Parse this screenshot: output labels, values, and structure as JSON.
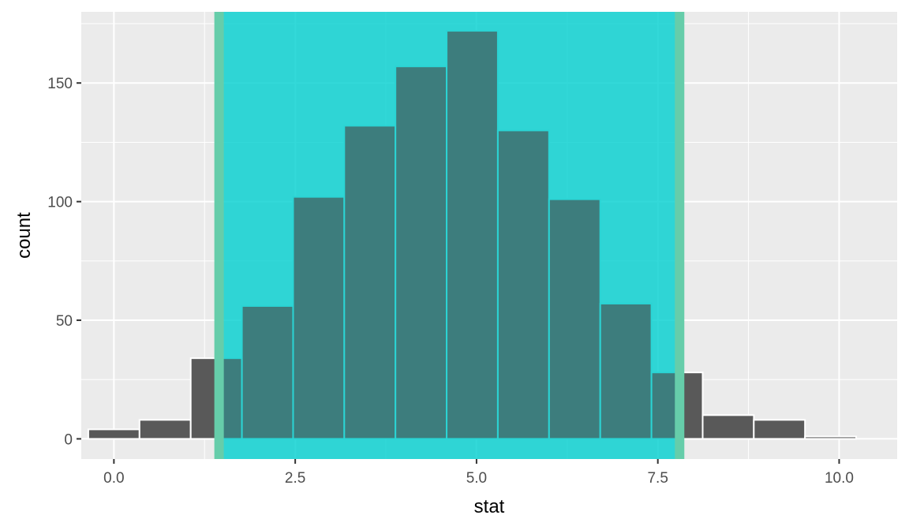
{
  "chart_data": {
    "type": "bar",
    "subtype": "histogram",
    "xlabel": "stat",
    "ylabel": "count",
    "xlim": [
      -0.45,
      10.8
    ],
    "ylim": [
      -8.5,
      180
    ],
    "x_ticks": [
      0.0,
      2.5,
      5.0,
      7.5,
      10.0
    ],
    "x_tick_labels": [
      "0.0",
      "2.5",
      "5.0",
      "7.5",
      "10.0"
    ],
    "y_ticks": [
      0,
      50,
      100,
      150
    ],
    "y_tick_labels": [
      "0",
      "50",
      "100",
      "150"
    ],
    "bin_width": 0.706,
    "bins": [
      {
        "x": 0.0,
        "count": 4
      },
      {
        "x": 0.706,
        "count": 8
      },
      {
        "x": 1.412,
        "count": 34
      },
      {
        "x": 2.118,
        "count": 56
      },
      {
        "x": 2.824,
        "count": 102
      },
      {
        "x": 3.529,
        "count": 132
      },
      {
        "x": 4.235,
        "count": 157
      },
      {
        "x": 4.941,
        "count": 172
      },
      {
        "x": 5.647,
        "count": 130
      },
      {
        "x": 6.353,
        "count": 101
      },
      {
        "x": 7.059,
        "count": 57
      },
      {
        "x": 7.765,
        "count": 28
      },
      {
        "x": 8.471,
        "count": 10
      },
      {
        "x": 9.176,
        "count": 8
      },
      {
        "x": 9.882,
        "count": 1
      }
    ],
    "interval": {
      "lower": 1.45,
      "upper": 7.8
    },
    "grid": true,
    "legend": "none",
    "colors": {
      "panel": "#ebebeb",
      "grid": "#ffffff",
      "bar_fill": "#595959",
      "bar_outline": "#ffffff",
      "bar_outline_shaded": "#2ad4d4",
      "shade_fill": "#00d0d0",
      "interval_line": "#66cdaa"
    }
  }
}
